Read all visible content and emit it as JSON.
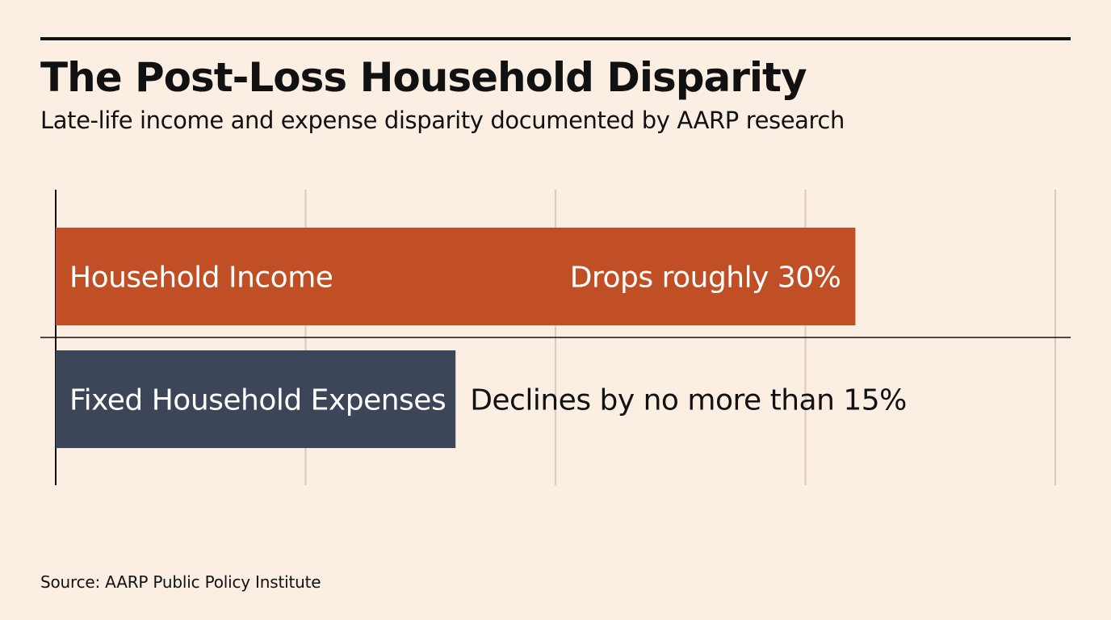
{
  "header": {
    "title": "The Post-Loss Household Disparity",
    "subtitle": "Late-life income and expense disparity documented by AARP research"
  },
  "chart_data": {
    "type": "bar",
    "orientation": "horizontal",
    "categories": [
      "Household Income",
      "Fixed Household Expenses"
    ],
    "values": [
      30,
      15
    ],
    "value_labels": [
      "Drops roughly 30%",
      "Declines by no more than 15%"
    ],
    "bar_colors": [
      "#c14f25",
      "#3d4558"
    ],
    "xlim": [
      0,
      37.5
    ],
    "grid": true,
    "title": "The Post-Loss Household Disparity",
    "subtitle": "Late-life income and expense disparity documented by AARP research",
    "xlabel": "",
    "ylabel": ""
  },
  "footer": {
    "source": "Source: AARP Public Policy Institute"
  }
}
